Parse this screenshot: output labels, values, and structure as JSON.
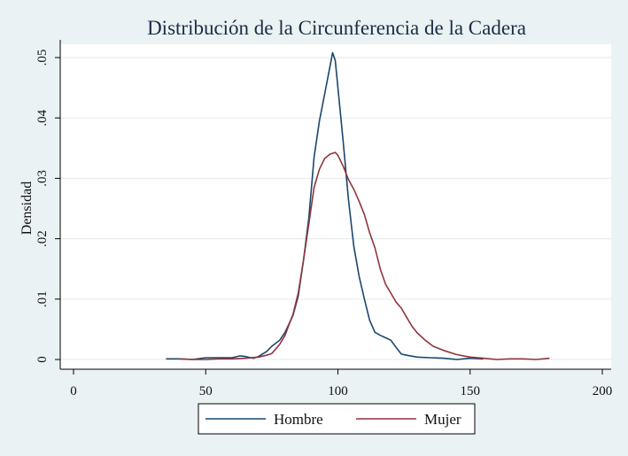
{
  "chart_data": {
    "type": "line",
    "title": "Distribución de la Circunferencia de la Cadera",
    "xlabel": "",
    "ylabel": "Densidad",
    "xlim": [
      0,
      200
    ],
    "ylim": [
      0,
      0.05
    ],
    "x_ticks": [
      0,
      50,
      100,
      150,
      200
    ],
    "x_tick_labels": [
      "0",
      "50",
      "100",
      "150",
      "200"
    ],
    "y_ticks": [
      0,
      0.01,
      0.02,
      0.03,
      0.04,
      0.05
    ],
    "y_tick_labels": [
      "0",
      ".01",
      ".02",
      ".03",
      ".04",
      ".05"
    ],
    "grid": true,
    "legend_position": "bottom",
    "series": [
      {
        "name": "Hombre",
        "color": "#1a476f",
        "x": [
          35,
          40,
          45,
          50,
          55,
          60,
          63,
          65,
          68,
          70,
          73,
          75,
          78,
          80,
          83,
          85,
          87,
          89,
          91,
          93,
          95,
          97,
          98,
          99,
          100,
          102,
          104,
          106,
          108,
          110,
          112,
          114,
          116,
          118,
          120,
          122,
          124,
          126,
          130,
          135,
          140,
          145,
          150,
          155
        ],
        "y": [
          0.0001,
          0.0001,
          0.0,
          0.0003,
          0.0003,
          0.0003,
          0.0006,
          0.0005,
          0.0002,
          0.0005,
          0.0013,
          0.0022,
          0.0032,
          0.0045,
          0.0073,
          0.0105,
          0.0165,
          0.0235,
          0.0335,
          0.0395,
          0.044,
          0.0485,
          0.0508,
          0.0495,
          0.045,
          0.036,
          0.0265,
          0.0188,
          0.0138,
          0.01,
          0.0065,
          0.0045,
          0.004,
          0.0036,
          0.0032,
          0.002,
          0.0009,
          0.0007,
          0.0004,
          0.0003,
          0.0002,
          0.0,
          0.0002,
          0.0001
        ]
      },
      {
        "name": "Mujer",
        "color": "#90353b",
        "x": [
          40,
          45,
          50,
          55,
          60,
          65,
          70,
          73,
          75,
          78,
          80,
          83,
          85,
          87,
          89,
          91,
          93,
          95,
          97,
          99,
          100,
          102,
          104,
          106,
          108,
          110,
          112,
          114,
          116,
          118,
          120,
          122,
          124,
          126,
          128,
          130,
          133,
          136,
          140,
          145,
          150,
          155,
          160,
          165,
          170,
          175,
          180
        ],
        "y": [
          0.0001,
          0.0,
          0.0,
          0.0001,
          0.0001,
          0.0002,
          0.0004,
          0.0007,
          0.001,
          0.0025,
          0.004,
          0.0075,
          0.011,
          0.0165,
          0.0225,
          0.0285,
          0.0315,
          0.0333,
          0.034,
          0.0343,
          0.0338,
          0.032,
          0.0298,
          0.0282,
          0.0262,
          0.024,
          0.021,
          0.0185,
          0.015,
          0.0125,
          0.011,
          0.0095,
          0.0085,
          0.007,
          0.0055,
          0.0044,
          0.0032,
          0.0022,
          0.0015,
          0.0008,
          0.0004,
          0.0002,
          0.0,
          0.0001,
          0.0001,
          0.0,
          0.0002
        ]
      }
    ]
  }
}
